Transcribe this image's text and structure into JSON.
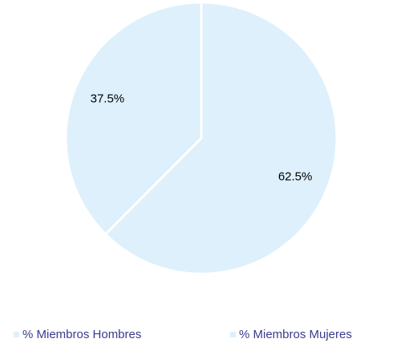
{
  "chart_data": {
    "type": "pie",
    "categories": [
      "% Miembros Hombres",
      "% Miembros Mujeres"
    ],
    "values": [
      62.5,
      37.5
    ],
    "value_labels": [
      "62.5%",
      "37.5%"
    ],
    "colors": [
      "#ddf0fc",
      "#ddf0fc"
    ],
    "legend": "bottom"
  }
}
